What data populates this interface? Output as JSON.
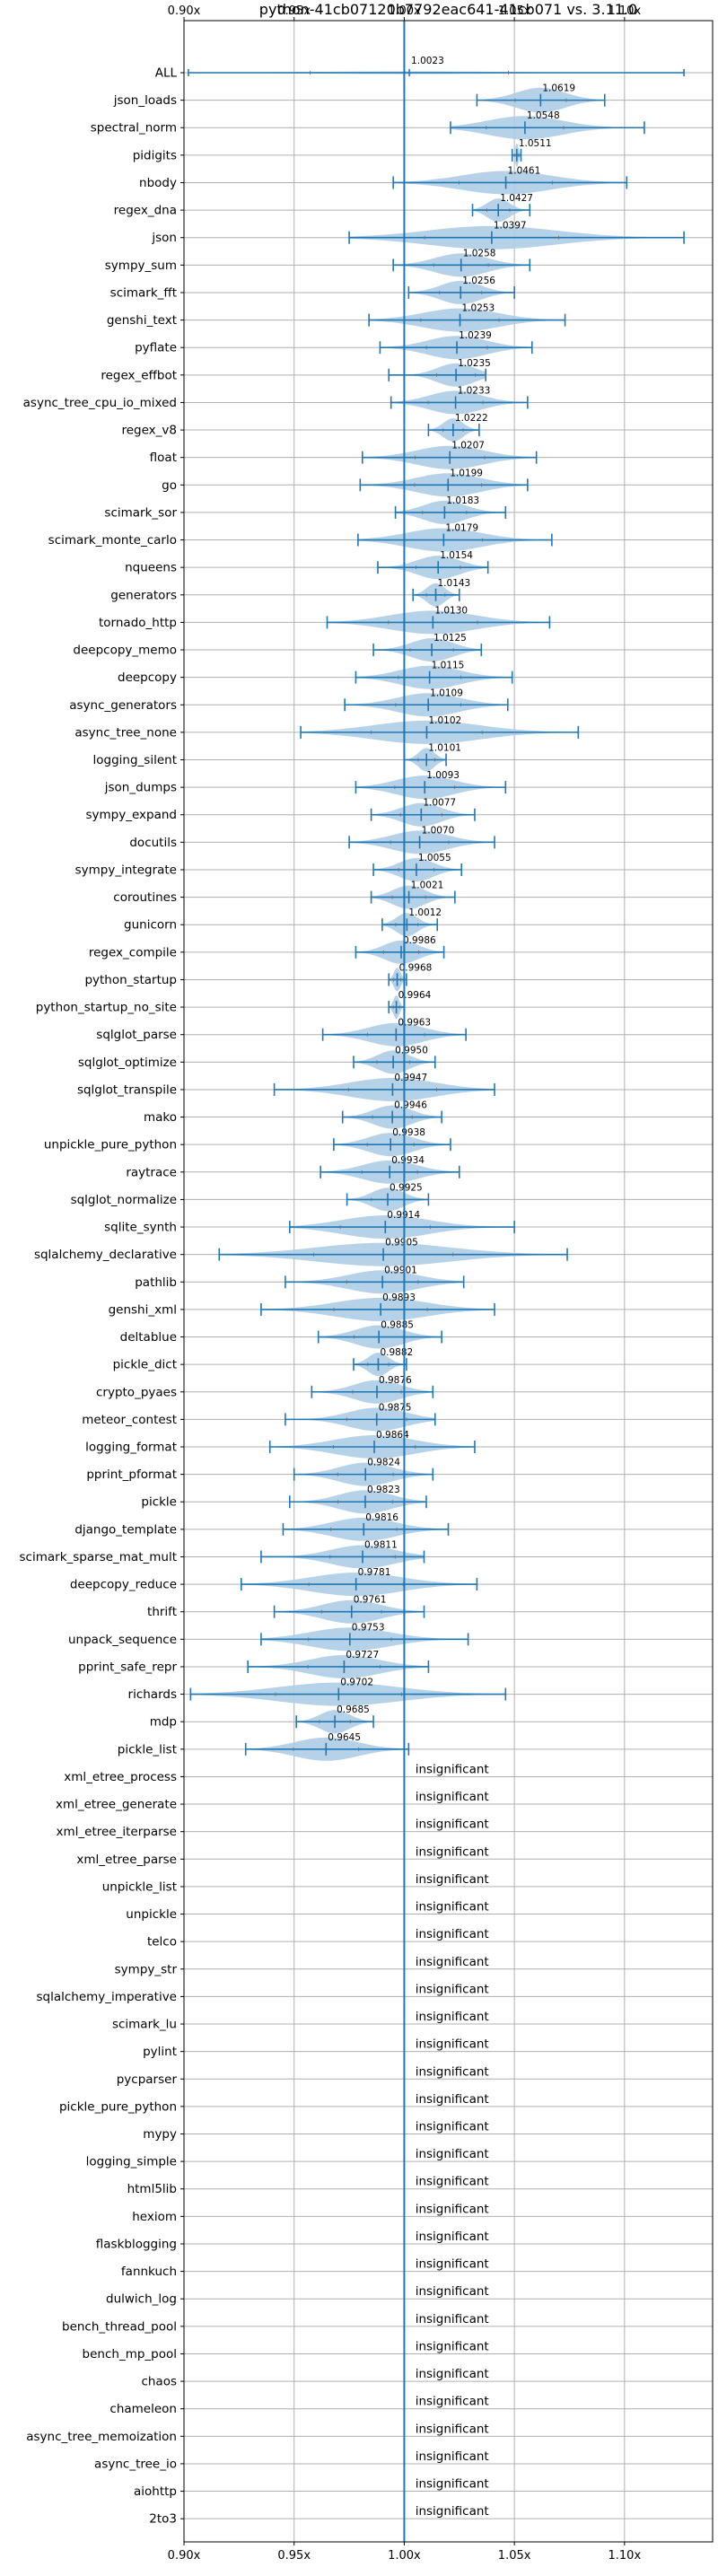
{
  "chart_data": {
    "type": "violin",
    "title": "python-41cb07120b7792eac641-41cb071 vs. 3.11.0",
    "xlabel": "",
    "ylabel": "",
    "xlim": [
      0.9,
      1.14
    ],
    "x_ticks": [
      0.9,
      0.95,
      1.0,
      1.05,
      1.1
    ],
    "x_tick_labels": [
      "0.90x",
      "0.95x",
      "1.00x",
      "1.05x",
      "1.10x"
    ],
    "x_ticks_top_and_bottom": true,
    "reference_line": 1.0,
    "grid": true,
    "colors": {
      "violin_fill": "#aecde6",
      "line": "#1f77b4",
      "grid": "#b0b0b0",
      "minor": "#777777"
    },
    "insignificant_text": "insignificant",
    "benchmarks": [
      {
        "name": "ALL",
        "value": 1.0023,
        "min": 0.902,
        "max": 1.127,
        "width": 0.1
      },
      {
        "name": "json_loads",
        "value": 1.0619,
        "min": 1.033,
        "max": 1.091,
        "width": 0.9
      },
      {
        "name": "spectral_norm",
        "value": 1.0548,
        "min": 1.021,
        "max": 1.109,
        "width": 0.85
      },
      {
        "name": "pidigits",
        "value": 1.0511,
        "min": 1.049,
        "max": 1.053,
        "width": 0.85
      },
      {
        "name": "nbody",
        "value": 1.0461,
        "min": 0.995,
        "max": 1.101,
        "width": 0.85
      },
      {
        "name": "regex_dna",
        "value": 1.0427,
        "min": 1.031,
        "max": 1.057,
        "width": 0.85
      },
      {
        "name": "json",
        "value": 1.0397,
        "min": 0.975,
        "max": 1.127,
        "width": 0.85
      },
      {
        "name": "sympy_sum",
        "value": 1.0258,
        "min": 0.995,
        "max": 1.057,
        "width": 0.85
      },
      {
        "name": "scimark_fft",
        "value": 1.0256,
        "min": 1.002,
        "max": 1.05,
        "width": 0.85
      },
      {
        "name": "genshi_text",
        "value": 1.0253,
        "min": 0.984,
        "max": 1.073,
        "width": 0.85
      },
      {
        "name": "pyflate",
        "value": 1.0239,
        "min": 0.989,
        "max": 1.058,
        "width": 0.85
      },
      {
        "name": "regex_effbot",
        "value": 1.0235,
        "min": 0.993,
        "max": 1.037,
        "width": 0.85
      },
      {
        "name": "async_tree_cpu_io_mixed",
        "value": 1.0233,
        "min": 0.994,
        "max": 1.056,
        "width": 0.85
      },
      {
        "name": "regex_v8",
        "value": 1.0222,
        "min": 1.011,
        "max": 1.034,
        "width": 0.85
      },
      {
        "name": "float",
        "value": 1.0207,
        "min": 0.981,
        "max": 1.06,
        "width": 0.85
      },
      {
        "name": "go",
        "value": 1.0199,
        "min": 0.98,
        "max": 1.056,
        "width": 0.85
      },
      {
        "name": "scimark_sor",
        "value": 1.0183,
        "min": 0.996,
        "max": 1.046,
        "width": 0.85
      },
      {
        "name": "scimark_monte_carlo",
        "value": 1.0179,
        "min": 0.979,
        "max": 1.067,
        "width": 0.85
      },
      {
        "name": "nqueens",
        "value": 1.0154,
        "min": 0.988,
        "max": 1.038,
        "width": 0.85
      },
      {
        "name": "generators",
        "value": 1.0143,
        "min": 1.004,
        "max": 1.025,
        "width": 0.85
      },
      {
        "name": "tornado_http",
        "value": 1.013,
        "min": 0.965,
        "max": 1.066,
        "width": 0.85
      },
      {
        "name": "deepcopy_memo",
        "value": 1.0125,
        "min": 0.986,
        "max": 1.035,
        "width": 0.85
      },
      {
        "name": "deepcopy",
        "value": 1.0115,
        "min": 0.978,
        "max": 1.049,
        "width": 0.85
      },
      {
        "name": "async_generators",
        "value": 1.0109,
        "min": 0.973,
        "max": 1.047,
        "width": 0.85
      },
      {
        "name": "async_tree_none",
        "value": 1.0102,
        "min": 0.953,
        "max": 1.079,
        "width": 0.85
      },
      {
        "name": "logging_silent",
        "value": 1.0101,
        "min": 1.0,
        "max": 1.019,
        "width": 0.85
      },
      {
        "name": "json_dumps",
        "value": 1.0093,
        "min": 0.978,
        "max": 1.046,
        "width": 0.85
      },
      {
        "name": "sympy_expand",
        "value": 1.0077,
        "min": 0.985,
        "max": 1.032,
        "width": 0.85
      },
      {
        "name": "docutils",
        "value": 1.007,
        "min": 0.975,
        "max": 1.041,
        "width": 0.85
      },
      {
        "name": "sympy_integrate",
        "value": 1.0055,
        "min": 0.986,
        "max": 1.026,
        "width": 0.85
      },
      {
        "name": "coroutines",
        "value": 1.0021,
        "min": 0.985,
        "max": 1.023,
        "width": 0.85
      },
      {
        "name": "gunicorn",
        "value": 1.0012,
        "min": 0.99,
        "max": 1.015,
        "width": 0.85
      },
      {
        "name": "regex_compile",
        "value": 0.9986,
        "min": 0.978,
        "max": 1.018,
        "width": 0.85
      },
      {
        "name": "python_startup",
        "value": 0.9968,
        "min": 0.993,
        "max": 1.001,
        "width": 0.85
      },
      {
        "name": "python_startup_no_site",
        "value": 0.9964,
        "min": 0.993,
        "max": 1.0,
        "width": 0.85
      },
      {
        "name": "sqlglot_parse",
        "value": 0.9963,
        "min": 0.963,
        "max": 1.028,
        "width": 0.85
      },
      {
        "name": "sqlglot_optimize",
        "value": 0.995,
        "min": 0.977,
        "max": 1.014,
        "width": 0.85
      },
      {
        "name": "sqlglot_transpile",
        "value": 0.9947,
        "min": 0.941,
        "max": 1.041,
        "width": 0.85
      },
      {
        "name": "mako",
        "value": 0.9946,
        "min": 0.972,
        "max": 1.017,
        "width": 0.85
      },
      {
        "name": "unpickle_pure_python",
        "value": 0.9938,
        "min": 0.968,
        "max": 1.021,
        "width": 0.85
      },
      {
        "name": "raytrace",
        "value": 0.9934,
        "min": 0.962,
        "max": 1.025,
        "width": 0.85
      },
      {
        "name": "sqlglot_normalize",
        "value": 0.9925,
        "min": 0.974,
        "max": 1.011,
        "width": 0.85
      },
      {
        "name": "sqlite_synth",
        "value": 0.9914,
        "min": 0.948,
        "max": 1.05,
        "width": 0.85
      },
      {
        "name": "sqlalchemy_declarative",
        "value": 0.9905,
        "min": 0.916,
        "max": 1.074,
        "width": 0.85
      },
      {
        "name": "pathlib",
        "value": 0.9901,
        "min": 0.946,
        "max": 1.027,
        "width": 0.85
      },
      {
        "name": "genshi_xml",
        "value": 0.9893,
        "min": 0.935,
        "max": 1.041,
        "width": 0.85
      },
      {
        "name": "deltablue",
        "value": 0.9885,
        "min": 0.961,
        "max": 1.017,
        "width": 0.85
      },
      {
        "name": "pickle_dict",
        "value": 0.9882,
        "min": 0.977,
        "max": 1.001,
        "width": 0.85
      },
      {
        "name": "crypto_pyaes",
        "value": 0.9876,
        "min": 0.958,
        "max": 1.013,
        "width": 0.85
      },
      {
        "name": "meteor_contest",
        "value": 0.9875,
        "min": 0.946,
        "max": 1.014,
        "width": 0.85
      },
      {
        "name": "logging_format",
        "value": 0.9864,
        "min": 0.939,
        "max": 1.032,
        "width": 0.85
      },
      {
        "name": "pprint_pformat",
        "value": 0.9824,
        "min": 0.95,
        "max": 1.013,
        "width": 0.85
      },
      {
        "name": "pickle",
        "value": 0.9823,
        "min": 0.948,
        "max": 1.01,
        "width": 0.85
      },
      {
        "name": "django_template",
        "value": 0.9816,
        "min": 0.945,
        "max": 1.02,
        "width": 0.85
      },
      {
        "name": "scimark_sparse_mat_mult",
        "value": 0.9811,
        "min": 0.935,
        "max": 1.009,
        "width": 0.85
      },
      {
        "name": "deepcopy_reduce",
        "value": 0.9781,
        "min": 0.926,
        "max": 1.033,
        "width": 0.85
      },
      {
        "name": "thrift",
        "value": 0.9761,
        "min": 0.941,
        "max": 1.009,
        "width": 0.85
      },
      {
        "name": "unpack_sequence",
        "value": 0.9753,
        "min": 0.935,
        "max": 1.029,
        "width": 0.85
      },
      {
        "name": "pprint_safe_repr",
        "value": 0.9727,
        "min": 0.929,
        "max": 1.011,
        "width": 0.85
      },
      {
        "name": "richards",
        "value": 0.9702,
        "min": 0.903,
        "max": 1.046,
        "width": 0.85
      },
      {
        "name": "mdp",
        "value": 0.9685,
        "min": 0.951,
        "max": 0.986,
        "width": 0.85
      },
      {
        "name": "pickle_list",
        "value": 0.9645,
        "min": 0.928,
        "max": 1.002,
        "width": 0.85
      }
    ],
    "insignificant_benchmarks": [
      "xml_etree_process",
      "xml_etree_generate",
      "xml_etree_iterparse",
      "xml_etree_parse",
      "unpickle_list",
      "unpickle",
      "telco",
      "sympy_str",
      "sqlalchemy_imperative",
      "scimark_lu",
      "pylint",
      "pycparser",
      "pickle_pure_python",
      "mypy",
      "logging_simple",
      "html5lib",
      "hexiom",
      "flaskblogging",
      "fannkuch",
      "dulwich_log",
      "bench_thread_pool",
      "bench_mp_pool",
      "chaos",
      "chameleon",
      "async_tree_memoization",
      "async_tree_io",
      "aiohttp",
      "2to3"
    ]
  }
}
